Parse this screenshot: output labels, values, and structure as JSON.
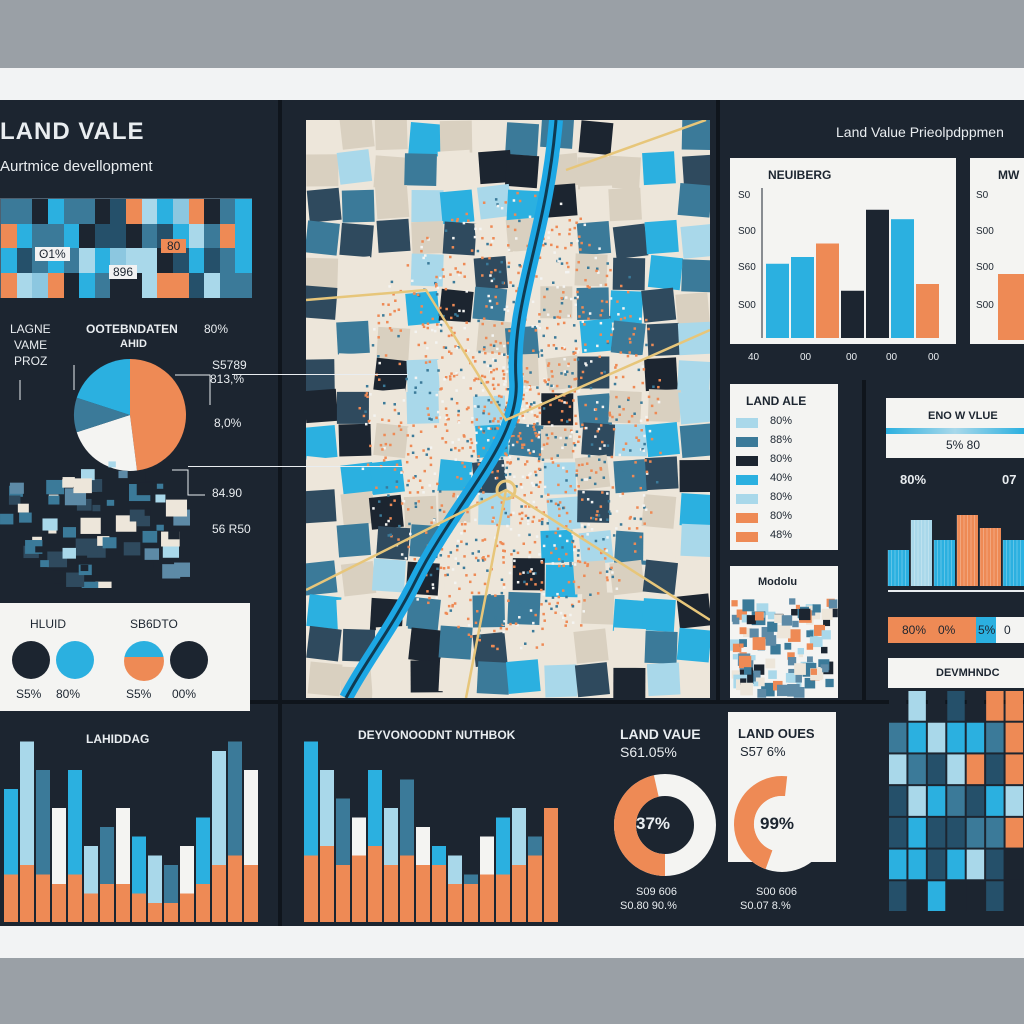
{
  "colors": {
    "navy": "#1c2530",
    "cyan": "#2bb0e0",
    "sky": "#a9d8ea",
    "orange": "#ee8a55",
    "steel": "#3b7a99",
    "cream": "#ede6da",
    "paper": "#f4f4f2"
  },
  "header": {
    "title": "LAND VALE",
    "subtitle": "Aurtmice devellopment",
    "right_title": "Land Value Prieolpdppmen"
  },
  "heat_strip": {
    "labels": [
      "ʘ1%",
      "896",
      "80"
    ]
  },
  "pie_section": {
    "left_label_lines": [
      "LAGNE",
      "VAME",
      "PROZ"
    ],
    "title_lines": [
      "OOTEBNDATEN",
      "AHID"
    ],
    "top_value": "80%",
    "callouts": [
      "S5789",
      "813,%",
      "8,0%",
      "84.90",
      "56 R50"
    ]
  },
  "legend_card": {
    "left_title": "HLUID",
    "right_title": "SB6DTO",
    "values": [
      "S5%",
      "80%",
      "S5%",
      "00%"
    ]
  },
  "bottom_left": {
    "title": "LAHIDDAG"
  },
  "bottom_mid": {
    "title": "DEYVONOODNT NUTHBOK"
  },
  "donut_left": {
    "title": "LAND VAUE",
    "value_line": "S61.05%",
    "center": "37%",
    "foot1": "S09 606",
    "foot2": "S0.80 90.%"
  },
  "donut_right": {
    "title": "LAND OUES",
    "value_line": "S57 6%",
    "center": "99%",
    "foot1": "S00 606",
    "foot2": "S0.07 8.%"
  },
  "bar_card_1": {
    "title": "NEUIBERG",
    "y_ticks": [
      "S0",
      "S00",
      "S60",
      "S00"
    ],
    "x_ticks": [
      "40",
      "00",
      "00",
      "00",
      "00"
    ]
  },
  "bar_card_2": {
    "title": "MW",
    "y_ticks": [
      "S0",
      "S00",
      "S00",
      "S00"
    ]
  },
  "land_legend": {
    "title": "LAND ALE",
    "items": [
      "80%",
      "88%",
      "80%",
      "40%",
      "80%",
      "80%",
      "48%"
    ]
  },
  "thumb_card": {
    "title": "Modolu"
  },
  "stat_card": {
    "title": "ENO W VLUE",
    "values": "5% 80",
    "left_value": "80%",
    "right_value": "07"
  },
  "pct_row": {
    "values": [
      "80%",
      "0%",
      "5%",
      "0"
    ]
  },
  "dev_grid": {
    "title": "DEVMHNDC"
  },
  "chart_data": [
    {
      "type": "bar",
      "title": "NEUIBERG",
      "series": [
        {
          "values": [
            55,
            60,
            20,
            0,
            95,
            88,
            25
          ]
        },
        {
          "values": [
            0,
            0,
            70,
            35,
            60,
            0,
            40
          ]
        }
      ],
      "ylim": [
        0,
        100
      ]
    },
    {
      "type": "bar",
      "title": "LAHIDDAG",
      "series": [
        {
          "values": [
            70,
            95,
            80,
            60,
            80,
            40,
            50,
            60,
            45,
            35,
            30,
            40,
            55,
            90,
            95,
            80
          ]
        },
        {
          "values": [
            25,
            30,
            25,
            20,
            25,
            15,
            20,
            20,
            15,
            10,
            10,
            15,
            20,
            30,
            35,
            30
          ]
        }
      ],
      "ylim": [
        0,
        100
      ]
    },
    {
      "type": "bar",
      "title": "DEYVONOODNT NUTHBOK",
      "series": [
        {
          "values": [
            95,
            80,
            65,
            55,
            80,
            60,
            75,
            50,
            40,
            35,
            25,
            45,
            55,
            60,
            45,
            55
          ]
        },
        {
          "values": [
            35,
            40,
            30,
            35,
            40,
            30,
            35,
            30,
            30,
            20,
            20,
            25,
            25,
            30,
            35,
            60
          ]
        }
      ],
      "ylim": [
        0,
        100
      ]
    },
    {
      "type": "pie",
      "title": "OOTEBNDATEN AHID",
      "values": [
        48,
        22,
        10,
        20
      ]
    }
  ]
}
